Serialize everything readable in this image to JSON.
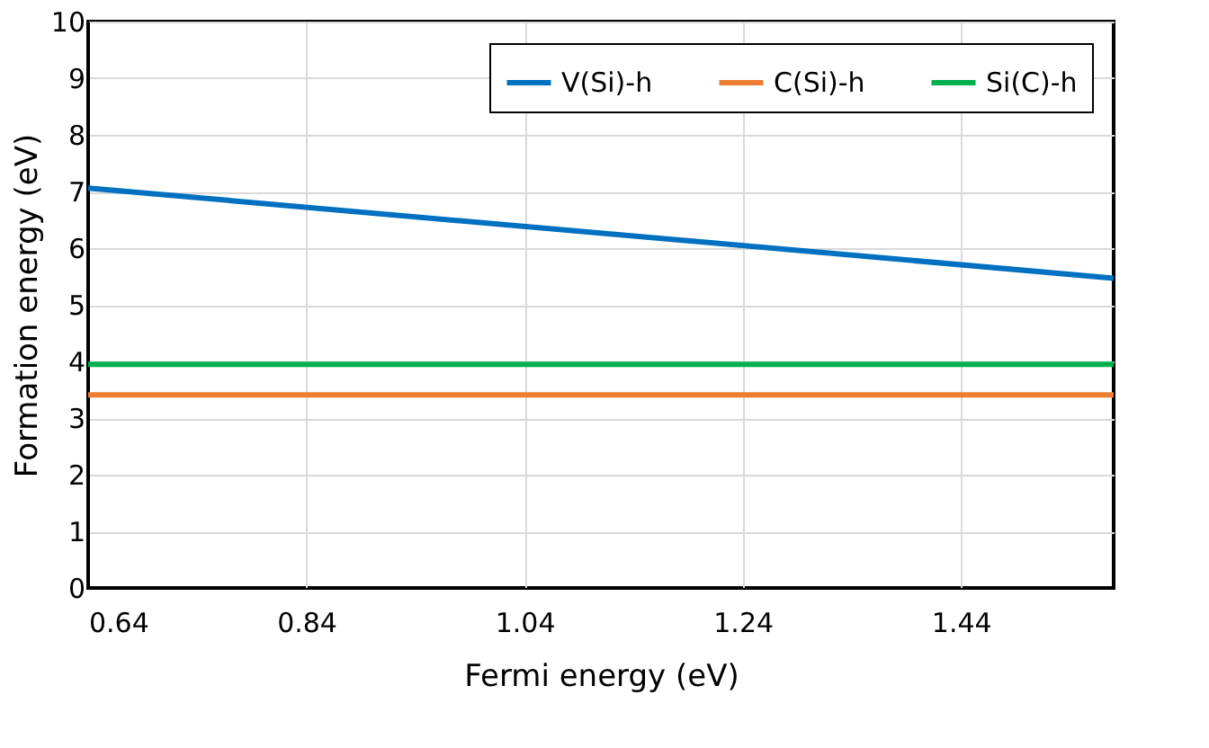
{
  "chart_data": {
    "type": "line",
    "xlabel": "Fermi energy (eV)",
    "ylabel": "Formation energy (eV)",
    "x": [
      0.64,
      1.58
    ],
    "series": [
      {
        "name": "V(Si)-h",
        "color": "#0070c0",
        "values": [
          7.06,
          5.47
        ]
      },
      {
        "name": "C(Si)-h",
        "color": "#ed7d31",
        "values": [
          3.41,
          3.41
        ]
      },
      {
        "name": "Si(C)-h",
        "color": "#00b050",
        "values": [
          3.95,
          3.95
        ]
      }
    ],
    "xlim": [
      0.64,
      1.58
    ],
    "xticks": [
      0.64,
      0.84,
      1.04,
      1.24,
      1.44
    ],
    "ylim": [
      0,
      10
    ],
    "yticks": [
      0,
      1,
      2,
      3,
      4,
      5,
      6,
      7,
      8,
      9,
      10
    ],
    "grid": true,
    "legend": "top right",
    "marker": "none",
    "line_style": "solid"
  }
}
